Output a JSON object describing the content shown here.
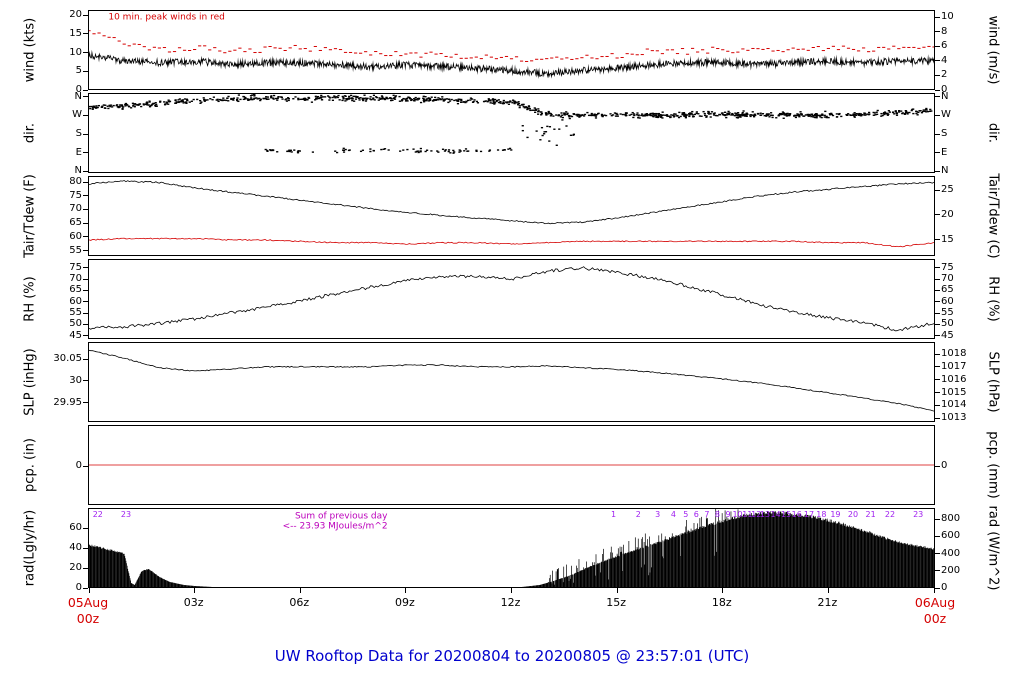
{
  "title": "UW Rooftop Data for 20200804  to  20200805 @ 23:57:01  (UTC)",
  "colors": {
    "axis": "#000000",
    "red": "#d40000",
    "title_blue": "#0000cd",
    "purple": "#a020f0"
  },
  "xaxis": {
    "range_hours": [
      0,
      24
    ],
    "ticks": [
      {
        "t": 3,
        "label": "03z"
      },
      {
        "t": 6,
        "label": "06z"
      },
      {
        "t": 9,
        "label": "09z"
      },
      {
        "t": 12,
        "label": "12z"
      },
      {
        "t": 15,
        "label": "15z"
      },
      {
        "t": 18,
        "label": "18z"
      },
      {
        "t": 21,
        "label": "21z"
      }
    ],
    "edge_ticks": [
      0,
      24
    ],
    "start": {
      "line1": "05Aug",
      "line2": "00z",
      "color": "#d40000"
    },
    "end": {
      "line1": "06Aug",
      "line2": "00z",
      "color": "#d40000"
    }
  },
  "chart_data": [
    {
      "id": "wind",
      "type": "line",
      "label_left": "wind (kts)",
      "label_right": "wind (m/s)",
      "ylim": [
        0,
        20.8
      ],
      "ticks_left": [
        {
          "v": 0,
          "label": "0"
        },
        {
          "v": 5,
          "label": "5"
        },
        {
          "v": 10,
          "label": "10"
        },
        {
          "v": 15,
          "label": "15"
        },
        {
          "v": 20,
          "label": "20"
        }
      ],
      "ticks_right": [
        {
          "v": 0,
          "label": "0"
        },
        {
          "v": 3.889,
          "label": "2"
        },
        {
          "v": 7.775,
          "label": "4"
        },
        {
          "v": 11.663,
          "label": "6"
        },
        {
          "v": 15.551,
          "label": "8"
        },
        {
          "v": 19.438,
          "label": "10"
        }
      ],
      "annotations": [
        {
          "text": "10 min. peak winds in red",
          "t": 0.55,
          "v": 19.2,
          "color": "#d40000",
          "size": 9
        }
      ],
      "series": [
        {
          "name": "wind-mean",
          "mode": "noisy-line",
          "color": "#000000",
          "noise": 0.9,
          "samples_per_hour": 60,
          "x": [
            0,
            1,
            2,
            3,
            4,
            5,
            6,
            7,
            8,
            9,
            10,
            11,
            12,
            13,
            14,
            15,
            16,
            17,
            18,
            19,
            20,
            21,
            22,
            23,
            24
          ],
          "y": [
            9.0,
            7.5,
            7.0,
            7.5,
            6.5,
            7.0,
            7.0,
            6.5,
            6.0,
            6.5,
            6.0,
            5.5,
            5.0,
            4.0,
            5.0,
            5.5,
            6.5,
            7.0,
            7.0,
            6.5,
            7.0,
            7.5,
            7.0,
            7.5,
            7.5
          ]
        },
        {
          "name": "wind-peak-10min",
          "mode": "dash-scatter",
          "color": "#d40000",
          "noise": 0.8,
          "samples_per_hour": 7,
          "x": [
            0,
            1,
            2,
            3,
            4,
            5,
            6,
            7,
            8,
            9,
            10,
            11,
            12,
            13,
            14,
            15,
            16,
            17,
            18,
            19,
            20,
            21,
            22,
            23,
            24
          ],
          "y": [
            15.0,
            12.5,
            10.5,
            11.0,
            10.0,
            10.5,
            11.0,
            10.0,
            9.5,
            9.5,
            9.0,
            8.5,
            8.0,
            7.5,
            8.5,
            9.0,
            10.0,
            10.0,
            10.5,
            10.0,
            10.5,
            11.0,
            10.5,
            11.0,
            11.0
          ]
        }
      ]
    },
    {
      "id": "dir",
      "type": "scatter",
      "label_left": "dir.",
      "label_right": "dir.",
      "ylim": [
        -8,
        368
      ],
      "ticks_left": [
        {
          "v": 0,
          "label": "N"
        },
        {
          "v": 90,
          "label": "E"
        },
        {
          "v": 180,
          "label": "S"
        },
        {
          "v": 270,
          "label": "W"
        },
        {
          "v": 360,
          "label": "N"
        }
      ],
      "ticks_right": [
        {
          "v": 0,
          "label": "N"
        },
        {
          "v": 90,
          "label": "E"
        },
        {
          "v": 180,
          "label": "S"
        },
        {
          "v": 270,
          "label": "W"
        },
        {
          "v": 360,
          "label": "N"
        }
      ],
      "series": [
        {
          "name": "dir-main",
          "mode": "scatter",
          "color": "#000000",
          "spread": 20,
          "samples_per_hour": 42,
          "x": [
            0,
            1,
            2,
            3,
            4,
            5,
            6,
            7,
            8,
            9,
            10,
            11,
            12,
            13,
            14,
            15,
            16,
            17,
            18,
            19,
            20,
            21,
            22,
            23,
            24
          ],
          "y": [
            300,
            310,
            325,
            335,
            345,
            350,
            345,
            350,
            348,
            345,
            340,
            338,
            330,
            270,
            265,
            268,
            265,
            268,
            270,
            268,
            268,
            265,
            270,
            278,
            285
          ]
        },
        {
          "name": "dir-easterly",
          "mode": "scatter",
          "color": "#000000",
          "spread": 14,
          "samples_per_hour": 12,
          "x": [
            5,
            6,
            7,
            8,
            9,
            10,
            11,
            12
          ],
          "y": [
            95,
            90,
            95,
            100,
            95,
            92,
            95,
            100
          ]
        },
        {
          "name": "dir-transition",
          "mode": "scatter",
          "color": "#000000",
          "spread": 110,
          "samples_per_hour": 14,
          "x": [
            12.3,
            13.0,
            13.8
          ],
          "y": [
            200,
            180,
            200
          ]
        }
      ]
    },
    {
      "id": "tair",
      "type": "line",
      "label_left": "Tair/Tdew (F)",
      "label_right": "Tair/Tdew (C)",
      "ylim": [
        53,
        81.5
      ],
      "ticks_left": [
        {
          "v": 55,
          "label": "55"
        },
        {
          "v": 60,
          "label": "60"
        },
        {
          "v": 65,
          "label": "65"
        },
        {
          "v": 70,
          "label": "70"
        },
        {
          "v": 75,
          "label": "75"
        },
        {
          "v": 80,
          "label": "80"
        }
      ],
      "ticks_right": [
        {
          "v": 59,
          "label": "15"
        },
        {
          "v": 68,
          "label": "20"
        },
        {
          "v": 77,
          "label": "25"
        }
      ],
      "series": [
        {
          "name": "tair",
          "mode": "noisy-line",
          "color": "#000000",
          "noise": 0.25,
          "samples_per_hour": 20,
          "x": [
            0,
            1,
            2,
            3,
            4,
            5,
            6,
            7,
            8,
            9,
            10,
            11,
            12,
            13,
            14,
            15,
            16,
            17,
            18,
            19,
            20,
            21,
            22,
            23,
            24
          ],
          "y": [
            79.0,
            80.0,
            79.5,
            77.5,
            76.0,
            74.5,
            73.0,
            71.5,
            70.0,
            68.5,
            67.5,
            66.5,
            65.5,
            64.5,
            65.0,
            66.5,
            68.5,
            70.5,
            72.5,
            74.5,
            76.0,
            77.0,
            78.0,
            79.0,
            79.5
          ]
        },
        {
          "name": "tdew",
          "mode": "noisy-line",
          "color": "#d40000",
          "noise": 0.2,
          "samples_per_hour": 20,
          "x": [
            0,
            1,
            2,
            3,
            4,
            5,
            6,
            7,
            8,
            9,
            10,
            11,
            12,
            13,
            14,
            15,
            16,
            17,
            18,
            19,
            20,
            21,
            22,
            23,
            24
          ],
          "y": [
            58.5,
            59.0,
            59.0,
            59.0,
            58.5,
            58.5,
            58.0,
            57.5,
            57.5,
            57.0,
            57.5,
            57.5,
            57.0,
            57.5,
            58.0,
            58.0,
            58.0,
            58.0,
            58.0,
            58.0,
            58.0,
            57.5,
            57.5,
            56.0,
            57.5
          ]
        }
      ]
    },
    {
      "id": "rh",
      "type": "line",
      "label_left": "RH (%)",
      "label_right": "RH (%)",
      "ylim": [
        43.5,
        78
      ],
      "ticks_left": [
        {
          "v": 45,
          "label": "45"
        },
        {
          "v": 50,
          "label": "50"
        },
        {
          "v": 55,
          "label": "55"
        },
        {
          "v": 60,
          "label": "60"
        },
        {
          "v": 65,
          "label": "65"
        },
        {
          "v": 70,
          "label": "70"
        },
        {
          "v": 75,
          "label": "75"
        }
      ],
      "ticks_right": [
        {
          "v": 45,
          "label": "45"
        },
        {
          "v": 50,
          "label": "50"
        },
        {
          "v": 55,
          "label": "55"
        },
        {
          "v": 60,
          "label": "60"
        },
        {
          "v": 65,
          "label": "65"
        },
        {
          "v": 70,
          "label": "70"
        },
        {
          "v": 75,
          "label": "75"
        }
      ],
      "series": [
        {
          "name": "rh",
          "mode": "noisy-line",
          "color": "#000000",
          "noise": 0.7,
          "samples_per_hour": 20,
          "x": [
            0,
            1,
            2,
            3,
            4,
            5,
            6,
            7,
            8,
            9,
            10,
            11,
            12,
            13,
            14,
            15,
            16,
            17,
            18,
            19,
            20,
            21,
            22,
            23,
            24
          ],
          "y": [
            48,
            48.5,
            50,
            52,
            54.5,
            57,
            60,
            63,
            66,
            69,
            70.5,
            71,
            69.5,
            73,
            74.5,
            72.5,
            70,
            66.5,
            62.5,
            58.5,
            55,
            52.5,
            50,
            47,
            50
          ]
        }
      ]
    },
    {
      "id": "slp",
      "type": "line",
      "label_left": "SLP (inHg)",
      "label_right": "SLP (hPa)",
      "ylim": [
        29.905,
        30.085
      ],
      "ticks_left": [
        {
          "v": 30.05,
          "label": "30.05"
        },
        {
          "v": 30.0,
          "label": "30"
        },
        {
          "v": 29.95,
          "label": "29.95"
        }
      ],
      "ticks_right": [
        {
          "v": 29.9139,
          "label": "1013"
        },
        {
          "v": 29.9434,
          "label": "1014"
        },
        {
          "v": 29.9729,
          "label": "1015"
        },
        {
          "v": 30.0025,
          "label": "1016"
        },
        {
          "v": 30.032,
          "label": "1017"
        },
        {
          "v": 30.0615,
          "label": "1018"
        }
      ],
      "series": [
        {
          "name": "slp",
          "mode": "noisy-line",
          "color": "#000000",
          "noise": 0.0012,
          "samples_per_hour": 20,
          "x": [
            0,
            1,
            2,
            3,
            4,
            5,
            6,
            7,
            8,
            9,
            10,
            11,
            12,
            13,
            14,
            15,
            16,
            17,
            18,
            19,
            20,
            21,
            22,
            23,
            24
          ],
          "y": [
            30.068,
            30.05,
            30.028,
            30.02,
            30.025,
            30.03,
            30.03,
            30.03,
            30.03,
            30.034,
            30.034,
            30.03,
            30.03,
            30.032,
            30.028,
            30.024,
            30.018,
            30.01,
            30.002,
            29.993,
            29.982,
            29.97,
            29.958,
            29.945,
            29.928
          ]
        }
      ]
    },
    {
      "id": "pcp",
      "type": "line",
      "label_left": "pcp. (in)",
      "label_right": "pcp. (mm)",
      "ylim": [
        -1,
        1
      ],
      "ticks_left": [
        {
          "v": 0,
          "label": "0"
        }
      ],
      "ticks_right": [
        {
          "v": 0,
          "label": "0"
        }
      ],
      "series": [
        {
          "name": "precip",
          "mode": "noisy-line",
          "color": "#d40000",
          "noise": 0,
          "samples_per_hour": 2,
          "x": [
            0,
            24
          ],
          "y": [
            0,
            0
          ]
        }
      ]
    },
    {
      "id": "rad",
      "type": "area",
      "label_left": "rad(Lgly/hr)",
      "label_right": "rad (W/m^2)",
      "ylim": [
        0,
        78
      ],
      "ticks_left": [
        {
          "v": 0,
          "label": "0"
        },
        {
          "v": 20,
          "label": "20"
        },
        {
          "v": 40,
          "label": "40"
        },
        {
          "v": 60,
          "label": "60"
        }
      ],
      "ticks_right": [
        {
          "v": 0,
          "label": "0"
        },
        {
          "v": 17.2,
          "label": "200"
        },
        {
          "v": 34.4,
          "label": "400"
        },
        {
          "v": 51.6,
          "label": "600"
        },
        {
          "v": 68.8,
          "label": "800"
        }
      ],
      "annotations": [
        {
          "text": "Sum of previous day",
          "t": 5.85,
          "v": 71,
          "color": "#bb00bb",
          "size": 9
        },
        {
          "text": "<-- 23.93 MJoules/m^2",
          "t": 5.5,
          "v": 61,
          "color": "#bb00bb",
          "size": 9
        }
      ],
      "markers": [
        {
          "label": "22",
          "t": 0.25
        },
        {
          "label": "23",
          "t": 1.05
        },
        {
          "label": "1",
          "t": 14.9
        },
        {
          "label": "2",
          "t": 15.6
        },
        {
          "label": "3",
          "t": 16.15
        },
        {
          "label": "4",
          "t": 16.6
        },
        {
          "label": "5",
          "t": 16.95
        },
        {
          "label": "6",
          "t": 17.25
        },
        {
          "label": "7",
          "t": 17.55
        },
        {
          "label": "8",
          "t": 17.85
        },
        {
          "label": "9",
          "t": 18.15
        },
        {
          "label": "10",
          "t": 18.42
        },
        {
          "label": "11",
          "t": 18.7
        },
        {
          "label": "12",
          "t": 18.95
        },
        {
          "label": "13",
          "t": 19.2
        },
        {
          "label": "14",
          "t": 19.5
        },
        {
          "label": "15",
          "t": 19.8
        },
        {
          "label": "16",
          "t": 20.1
        },
        {
          "label": "17",
          "t": 20.45
        },
        {
          "label": "18",
          "t": 20.8
        },
        {
          "label": "19",
          "t": 21.2
        },
        {
          "label": "20",
          "t": 21.7
        },
        {
          "label": "21",
          "t": 22.2
        },
        {
          "label": "22",
          "t": 22.75
        },
        {
          "label": "23",
          "t": 23.55
        }
      ],
      "series": [
        {
          "name": "solar-radiation",
          "mode": "area",
          "color": "#000000",
          "bars_per_hour": 60,
          "spikes": {
            "from": 13,
            "to": 18.5,
            "amp": 13,
            "prob": 0.18
          },
          "x": [
            0,
            0.5,
            1.0,
            1.2,
            1.3,
            1.5,
            1.7,
            2.0,
            2.3,
            2.7,
            3.0,
            3.5,
            12.3,
            12.8,
            13.2,
            13.7,
            14.2,
            14.7,
            15.2,
            15.7,
            16.2,
            16.7,
            17.2,
            17.7,
            18.2,
            18.7,
            19.2,
            19.7,
            20.2,
            20.7,
            21.2,
            21.7,
            22.2,
            22.7,
            23.2,
            23.7,
            24
          ],
          "y": [
            42,
            38,
            33,
            4,
            2,
            16,
            18,
            10,
            5,
            2,
            1,
            0,
            0,
            2,
            6,
            12,
            20,
            27,
            33,
            39,
            45,
            51,
            57,
            63,
            68,
            72,
            74,
            74,
            72,
            69,
            65,
            60,
            54,
            48,
            43,
            40,
            38
          ]
        }
      ]
    }
  ]
}
